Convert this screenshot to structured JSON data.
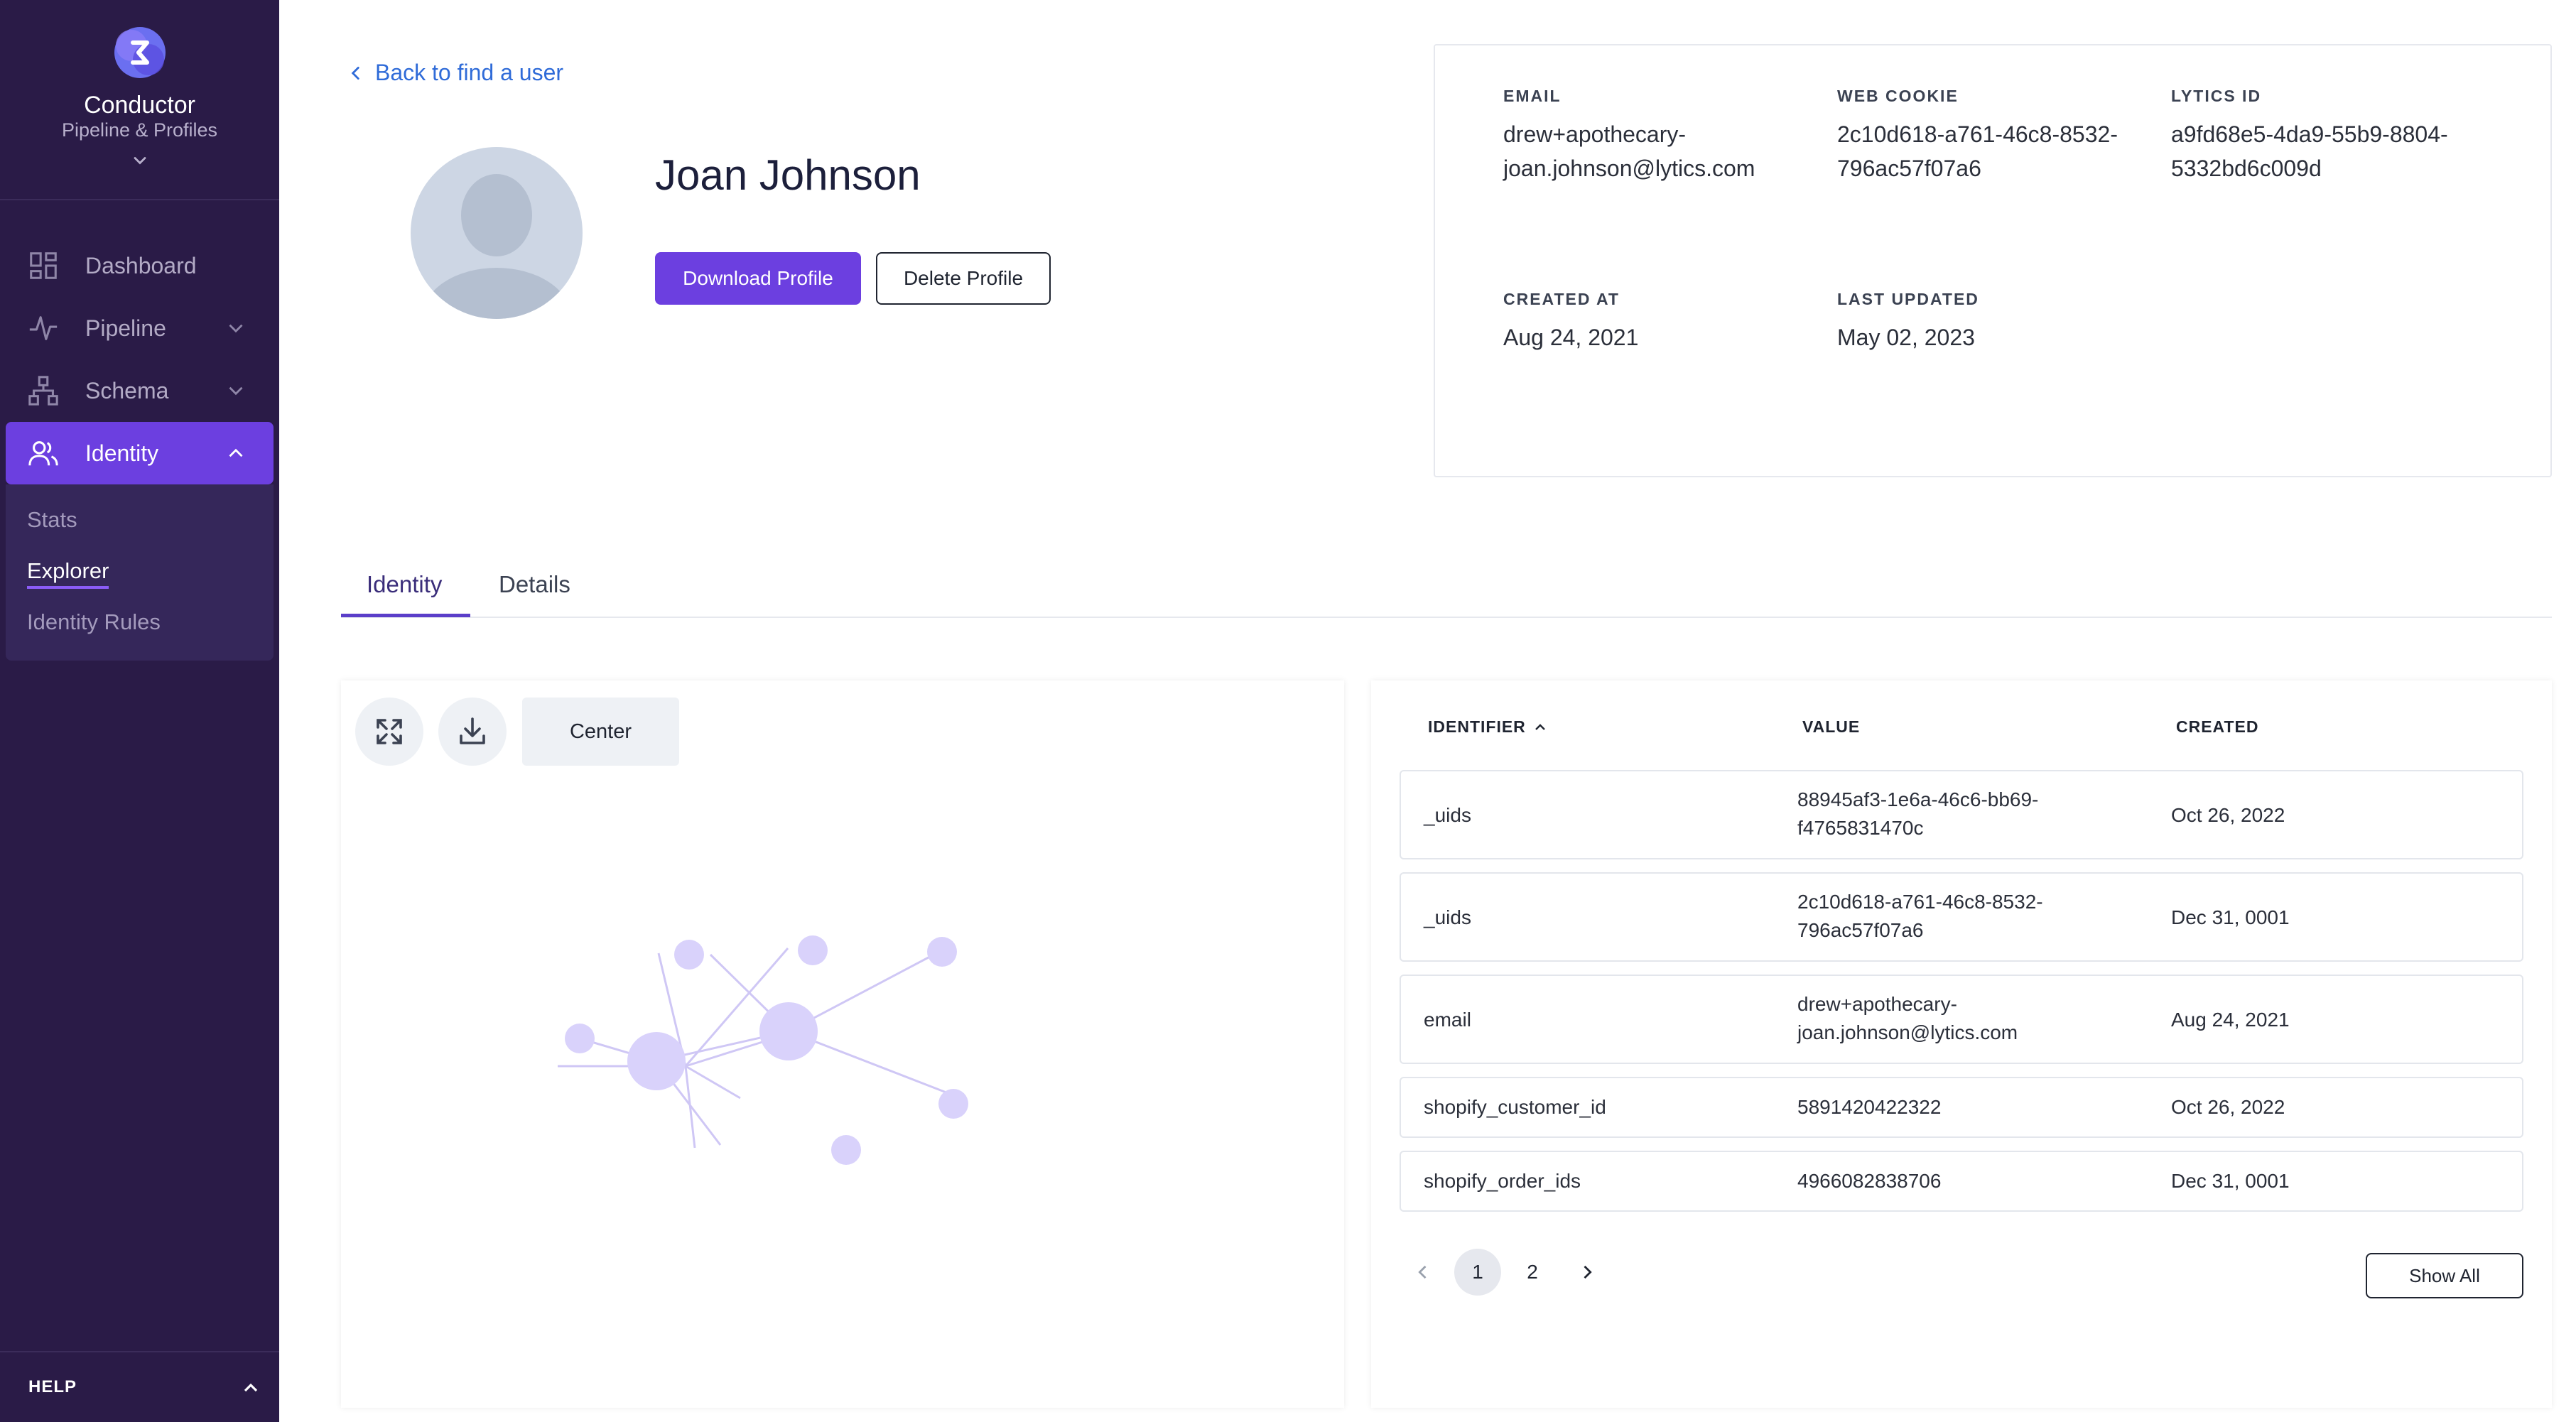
{
  "brand": {
    "name": "Conductor",
    "subtitle": "Pipeline & Profiles"
  },
  "sidebar": {
    "items": [
      {
        "label": "Dashboard",
        "icon": "dashboard-icon"
      },
      {
        "label": "Pipeline",
        "icon": "pipeline-icon"
      },
      {
        "label": "Schema",
        "icon": "schema-icon"
      },
      {
        "label": "Identity",
        "icon": "identity-icon",
        "active": true
      }
    ],
    "subitems": [
      {
        "label": "Stats"
      },
      {
        "label": "Explorer",
        "active": true
      },
      {
        "label": "Identity Rules"
      }
    ],
    "help": "HELP"
  },
  "back_link": "Back to find a user",
  "profile": {
    "name": "Joan Johnson",
    "download_label": "Download Profile",
    "delete_label": "Delete Profile"
  },
  "info": {
    "email_label": "EMAIL",
    "email_line1": "drew+apothecary-",
    "email_line2": "joan.johnson@lytics.com",
    "cookie_label": "WEB COOKIE",
    "cookie_line1": "2c10d618-a761-46c8-8532-",
    "cookie_line2": "796ac57f07a6",
    "lytics_label": "LYTICS ID",
    "lytics_line1": "a9fd68e5-4da9-55b9-8804-",
    "lytics_line2": "5332bd6c009d",
    "created_label": "CREATED AT",
    "created_value": "Aug 24, 2021",
    "updated_label": "LAST UPDATED",
    "updated_value": "May 02, 2023"
  },
  "tabs": [
    {
      "label": "Identity",
      "active": true
    },
    {
      "label": "Details"
    }
  ],
  "graph": {
    "center_label": "Center"
  },
  "table": {
    "headers": {
      "identifier": "IDENTIFIER",
      "value": "VALUE",
      "created": "CREATED"
    },
    "rows": [
      {
        "identifier": "_uids",
        "value1": "88945af3-1e6a-46c6-bb69-",
        "value2": "f4765831470c",
        "created": "Oct 26, 2022"
      },
      {
        "identifier": "_uids",
        "value1": "2c10d618-a761-46c8-8532-",
        "value2": "796ac57f07a6",
        "created": "Dec 31, 0001"
      },
      {
        "identifier": "email",
        "value1": "drew+apothecary-",
        "value2": "joan.johnson@lytics.com",
        "created": "Aug 24, 2021"
      },
      {
        "identifier": "shopify_customer_id",
        "value1": "5891420422322",
        "value2": "",
        "created": "Oct 26, 2022"
      },
      {
        "identifier": "shopify_order_ids",
        "value1": "4966082838706",
        "value2": "",
        "created": "Dec 31, 0001"
      }
    ],
    "pages": [
      "1",
      "2"
    ],
    "current_page": "1",
    "show_all": "Show All"
  },
  "colors": {
    "sidebar_bg": "#2a1b47",
    "accent": "#6c3fe0",
    "link": "#2f6bd8",
    "graph_node": "#d9d2fb"
  }
}
